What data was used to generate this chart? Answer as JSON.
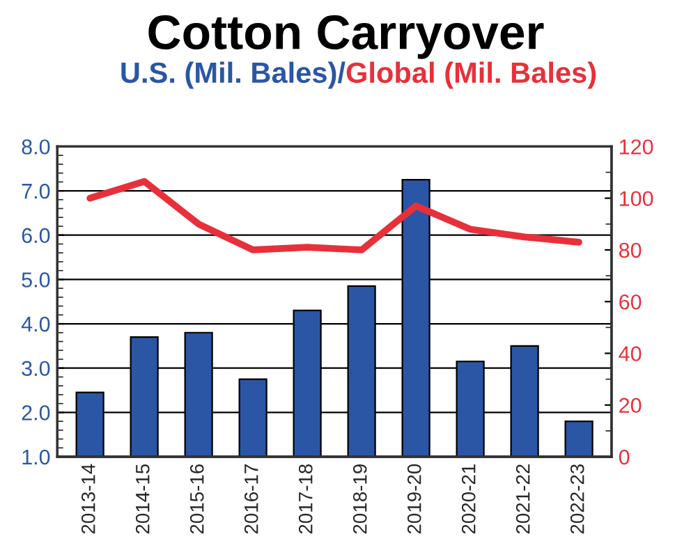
{
  "chart_data": {
    "type": "bar",
    "title": "Cotton Carryover",
    "ylabel": "U.S. (Mil. Bales)/",
    "y2label": "Global (Mil. Bales)",
    "categories": [
      "2013-14",
      "2014-15",
      "2015-16",
      "2016-17",
      "2017-18",
      "2018-19",
      "2019-20",
      "2020-21",
      "2021-22",
      "2022-23"
    ],
    "series": [
      {
        "color": "#2a56a5",
        "values": [
          2.45,
          3.7,
          3.8,
          2.75,
          4.3,
          4.85,
          7.25,
          3.15,
          3.5,
          1.8
        ]
      },
      {
        "type": "line",
        "axis": "y2",
        "color": "#e8303a",
        "values": [
          100,
          106.5,
          90,
          80,
          81,
          80,
          97,
          88,
          85,
          83
        ]
      }
    ],
    "ylim": [
      1.0,
      8.0
    ],
    "yticks": [
      {
        "value": 1,
        "label": "1.0"
      },
      {
        "value": 2,
        "label": "2.0"
      },
      {
        "value": 3,
        "label": "3.0"
      },
      {
        "value": 4,
        "label": "4.0"
      },
      {
        "value": 5,
        "label": "5.0"
      },
      {
        "value": 6,
        "label": "6.0"
      },
      {
        "value": 7,
        "label": "7.0"
      },
      {
        "value": 8,
        "label": "8.0"
      }
    ],
    "y2lim": [
      0,
      120
    ],
    "y2ticks": [
      0,
      20,
      40,
      60,
      80,
      100,
      120
    ],
    "grid": "y",
    "legend": false
  }
}
